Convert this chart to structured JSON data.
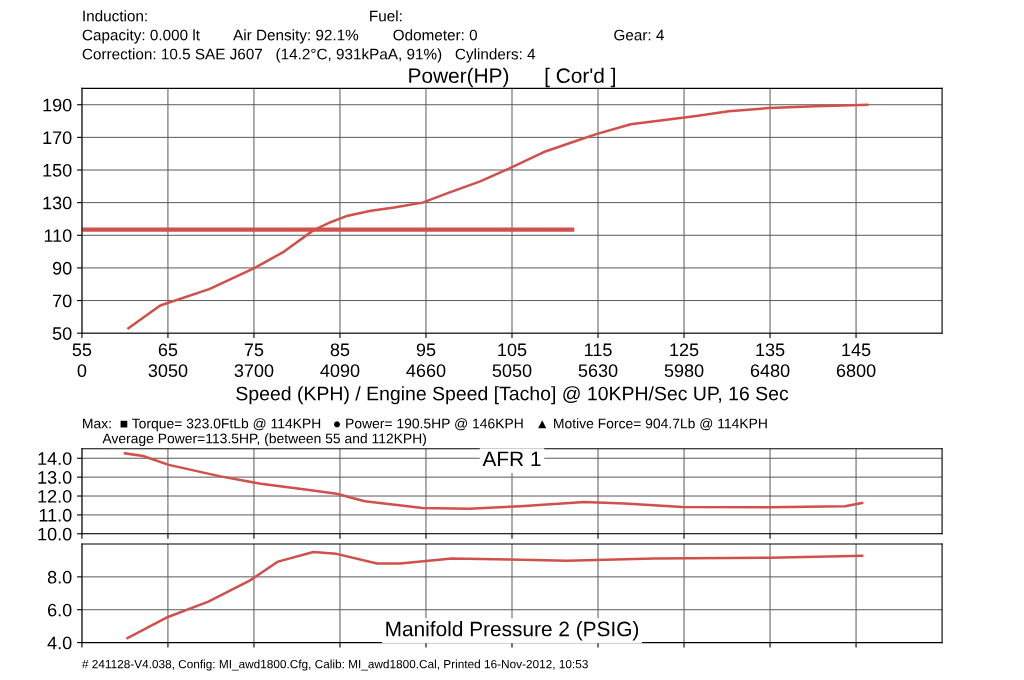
{
  "chart_data": [
    {
      "type": "line",
      "title": "Power(HP)      [ Cor'd ]",
      "xlabel": "Speed (KPH) / Engine Speed [Tacho] @ 10KPH/Sec UP, 16 Sec",
      "annotations": [
        "Induction:                                                    Fuel:",
        "Capacity: 0.000 lt        Air Density: 92.1%        Odometer: 0                                Gear: 4",
        "Correction: 10.5 SAE J607   (14.2°C, 931kPaA, 91%)   Cylinders: 4",
        "Max:  ■ Torque= 323.0FtLb @ 114KPH   ● Power= 190.5HP @ 146KPH   ▲ Motive Force= 904.7Lb @ 114KPH",
        "Average Power=113.5HP, (between 55 and 112KPH)",
        "0",
        "3050",
        "3700",
        "4090",
        "4660",
        "5050",
        "5630",
        "5980",
        "6480",
        "6800"
      ],
      "xlim": [
        55,
        155
      ],
      "ylim": [
        50,
        200
      ],
      "xticks": [
        55,
        65,
        75,
        85,
        95,
        105,
        115,
        125,
        135,
        145
      ],
      "yticks": [
        50,
        70,
        90,
        110,
        130,
        150,
        170,
        190
      ],
      "grid": true,
      "legend": false,
      "series": [
        {
          "color": "#d0504c",
          "x": [
            60.4,
            64.1,
            69.8,
            75.1,
            78.5,
            81.9,
            83.9,
            85.9,
            88.6,
            91.3,
            94.6,
            97.6,
            101.3,
            104.7,
            108.7,
            112,
            114.8,
            118.8,
            126.2,
            130.2,
            134.9,
            140.3,
            146.3
          ],
          "values": [
            53,
            67,
            77,
            90,
            100,
            113,
            118,
            122,
            125,
            127,
            130,
            136,
            143,
            151,
            161,
            167,
            172,
            178,
            183,
            186,
            188,
            189,
            190
          ]
        },
        {
          "color": "#d0504c",
          "x": [
            55,
            112
          ],
          "values": [
            113.5,
            113.5
          ]
        }
      ]
    },
    {
      "type": "line",
      "title": "AFR 1",
      "xlim": [
        55,
        155
      ],
      "ylim": [
        10,
        14.5
      ],
      "yticks": [
        {
          "value": 10,
          "label": "10.0"
        },
        {
          "value": 11,
          "label": "11.0"
        },
        {
          "value": 12,
          "label": "12.0"
        },
        {
          "value": 13,
          "label": "13.0"
        },
        {
          "value": 14,
          "label": "14.0"
        }
      ],
      "tick_labels": "y",
      "grid": true,
      "legend": false,
      "series": [
        {
          "color": "#d0504c",
          "x": [
            60,
            62.1,
            65.1,
            71.1,
            75.8,
            81.2,
            84.6,
            87.9,
            94.6,
            100,
            106,
            113.4,
            118.1,
            124.8,
            134.9,
            143.7,
            145.7
          ],
          "values": [
            14.26,
            14.12,
            13.65,
            13.04,
            12.65,
            12.33,
            12.12,
            11.72,
            11.37,
            11.33,
            11.46,
            11.68,
            11.6,
            11.42,
            11.4,
            11.46,
            11.63
          ]
        }
      ]
    },
    {
      "type": "line",
      "title": "Manifold Pressure 2 (PSIG)",
      "xlim": [
        55,
        155
      ],
      "ylim": [
        4,
        10
      ],
      "yticks": [
        {
          "value": 4,
          "label": "4.0"
        },
        {
          "value": 6,
          "label": "6.0"
        },
        {
          "value": 8,
          "label": "8.0"
        }
      ],
      "tick_labels": "y",
      "grid": true,
      "legend": false,
      "annotations": [
        "# 241128-V4.038, Config: MI_awd1800.Cfg, Calib: MI_awd1800.Cal, Printed 16-Nov-2012, 10:53"
      ],
      "series": [
        {
          "color": "#d0504c",
          "x": [
            60.3,
            65,
            69.7,
            74.5,
            77.8,
            81.9,
            84.6,
            89.3,
            92,
            98,
            104.7,
            111.4,
            121.5,
            134.9,
            145.7
          ],
          "values": [
            4.28,
            5.56,
            6.49,
            7.77,
            8.93,
            9.51,
            9.4,
            8.81,
            8.81,
            9.12,
            9.05,
            8.98,
            9.12,
            9.16,
            9.28
          ]
        }
      ]
    }
  ]
}
